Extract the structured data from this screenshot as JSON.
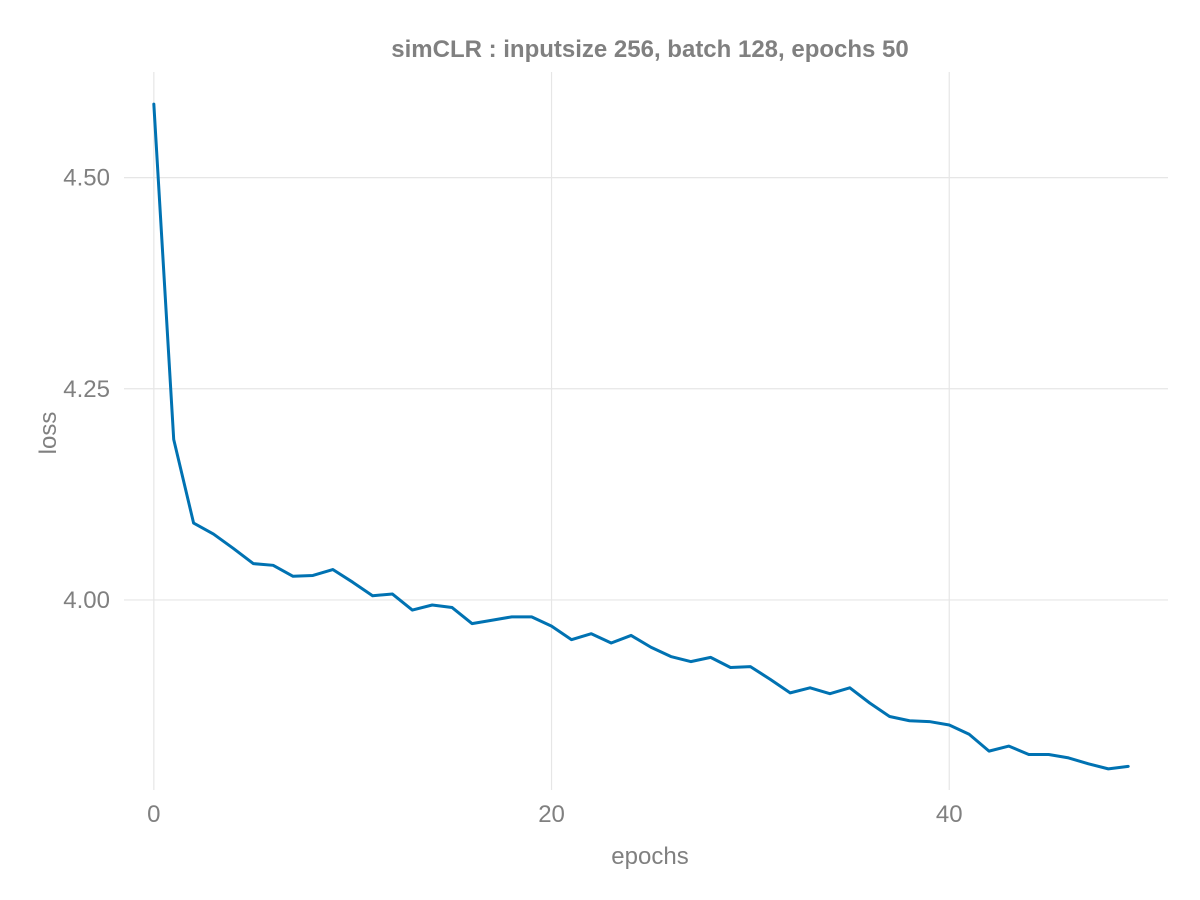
{
  "chart_data": {
    "type": "line",
    "title": "simCLR : inputsize 256, batch 128, epochs 50",
    "xlabel": "epochs",
    "ylabel": "loss",
    "xlim": [
      -1.5,
      51
    ],
    "ylim": [
      3.775,
      4.625
    ],
    "x_ticks": [
      0,
      20,
      40
    ],
    "x_tick_labels": [
      "0",
      "20",
      "40"
    ],
    "y_ticks": [
      4.0,
      4.25,
      4.5
    ],
    "y_tick_labels": [
      "4.00",
      "4.25",
      "4.50"
    ],
    "grid": true,
    "legend": "none",
    "colors": {
      "line": "#0072b2",
      "grid": "#e6e6e6",
      "text": "#808080"
    },
    "series": [
      {
        "x": [
          0,
          1,
          2,
          3,
          4,
          5,
          6,
          7,
          8,
          9,
          10,
          11,
          12,
          13,
          14,
          15,
          16,
          17,
          18,
          19,
          20,
          21,
          22,
          23,
          24,
          25,
          26,
          27,
          28,
          29,
          30,
          31,
          32,
          33,
          34,
          35,
          36,
          37,
          38,
          39,
          40,
          41,
          42,
          43,
          44,
          45,
          46,
          47,
          48,
          49
        ],
        "values": [
          4.587,
          4.19,
          4.091,
          4.078,
          4.061,
          4.043,
          4.041,
          4.028,
          4.029,
          4.036,
          4.021,
          4.005,
          4.007,
          3.988,
          3.994,
          3.991,
          3.972,
          3.976,
          3.98,
          3.98,
          3.969,
          3.953,
          3.96,
          3.949,
          3.958,
          3.944,
          3.933,
          3.927,
          3.932,
          3.92,
          3.921,
          3.906,
          3.89,
          3.896,
          3.889,
          3.896,
          3.878,
          3.862,
          3.857,
          3.856,
          3.852,
          3.841,
          3.821,
          3.827,
          3.817,
          3.817,
          3.813,
          3.806,
          3.8,
          3.803
        ]
      }
    ]
  }
}
